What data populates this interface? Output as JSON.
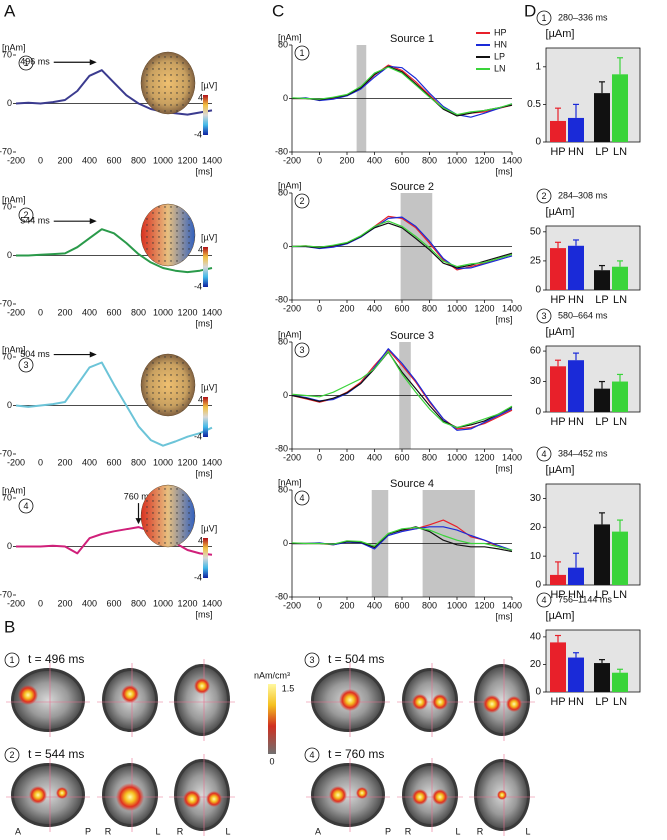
{
  "panel_labels": [
    "A",
    "B",
    "C",
    "D"
  ],
  "chart_data": [
    {
      "type": "line",
      "badge": "1",
      "y_label": "[nAm]",
      "x_label": "[ms]",
      "annotation": "496 ms",
      "colorbar_label": "[µV]",
      "colorbar_ticks": [
        4,
        -4
      ],
      "x": [
        -200,
        -100,
        0,
        100,
        200,
        300,
        400,
        500,
        600,
        700,
        800,
        900,
        1000,
        1100,
        1200,
        1300,
        1400
      ],
      "series": [
        {
          "color": "#3b3b8f",
          "values": [
            0,
            1,
            0,
            2,
            5,
            18,
            40,
            48,
            30,
            12,
            0,
            -8,
            -12,
            -14,
            -16,
            -13,
            -10
          ]
        }
      ],
      "xlim": [
        -200,
        1400
      ],
      "xticks": [
        -200,
        0,
        200,
        400,
        600,
        800,
        1000,
        1200,
        1400
      ],
      "ylim": [
        -70,
        70
      ],
      "yticks": [
        -70,
        0,
        70
      ]
    },
    {
      "type": "line",
      "badge": "2",
      "y_label": "[nAm]",
      "x_label": "[ms]",
      "annotation": "544 ms",
      "colorbar_label": "[µV]",
      "colorbar_ticks": [
        4,
        -4
      ],
      "x": [
        -200,
        -100,
        0,
        100,
        200,
        300,
        400,
        500,
        600,
        700,
        800,
        900,
        1000,
        1100,
        1200,
        1300,
        1400
      ],
      "series": [
        {
          "color": "#2a9a4a",
          "values": [
            0,
            0,
            1,
            2,
            3,
            12,
            25,
            38,
            32,
            18,
            2,
            -10,
            -18,
            -22,
            -24,
            -22,
            -18
          ]
        }
      ],
      "xlim": [
        -200,
        1400
      ],
      "xticks": [
        -200,
        0,
        200,
        400,
        600,
        800,
        1000,
        1200,
        1400
      ],
      "ylim": [
        -70,
        70
      ],
      "yticks": [
        -70,
        0,
        70
      ]
    },
    {
      "type": "line",
      "badge": "3",
      "y_label": "[nAm]",
      "x_label": "[ms]",
      "annotation": "504 ms",
      "colorbar_label": "[µV]",
      "colorbar_ticks": [
        4,
        -4
      ],
      "x": [
        -200,
        -100,
        0,
        100,
        200,
        300,
        400,
        500,
        600,
        700,
        800,
        900,
        1000,
        1100,
        1200,
        1300,
        1400
      ],
      "series": [
        {
          "color": "#6cc4d8",
          "values": [
            0,
            -2,
            0,
            2,
            5,
            30,
            55,
            62,
            30,
            0,
            -30,
            -50,
            -58,
            -52,
            -45,
            -40,
            -32
          ]
        }
      ],
      "xlim": [
        -200,
        1400
      ],
      "xticks": [
        -200,
        0,
        200,
        400,
        600,
        800,
        1000,
        1200,
        1400
      ],
      "ylim": [
        -70,
        70
      ],
      "yticks": [
        -70,
        0,
        70
      ]
    },
    {
      "type": "line",
      "badge": "4",
      "y_label": "[nAm]",
      "x_label": "[ms]",
      "annotation": "760 ms",
      "colorbar_label": "[µV]",
      "colorbar_ticks": [
        4,
        -4
      ],
      "x": [
        -200,
        -100,
        0,
        100,
        200,
        300,
        400,
        500,
        600,
        700,
        800,
        900,
        1000,
        1100,
        1200,
        1300,
        1400
      ],
      "series": [
        {
          "color": "#d0207a",
          "values": [
            0,
            0,
            0,
            1,
            0,
            -10,
            12,
            18,
            22,
            25,
            28,
            22,
            15,
            5,
            -5,
            -10,
            -12
          ]
        }
      ],
      "xlim": [
        -200,
        1400
      ],
      "xticks": [
        -200,
        0,
        200,
        400,
        600,
        800,
        1000,
        1200,
        1400
      ],
      "ylim": [
        -70,
        70
      ],
      "yticks": [
        -70,
        0,
        70
      ]
    },
    {
      "type": "line",
      "title": "Source 1",
      "badge": "1",
      "y_label": "[nAm]",
      "x_label": "[ms]",
      "highlights": [
        [
          270,
          340
        ]
      ],
      "legend": true,
      "x": [
        -200,
        -100,
        0,
        100,
        200,
        300,
        400,
        500,
        600,
        700,
        800,
        900,
        1000,
        1100,
        1200,
        1300,
        1400
      ],
      "series": [
        {
          "name": "HP",
          "color": "#e8202a",
          "values": [
            0,
            0,
            -2,
            0,
            5,
            15,
            35,
            50,
            42,
            25,
            5,
            -15,
            -25,
            -22,
            -20,
            -15,
            -10
          ]
        },
        {
          "name": "HN",
          "color": "#1a2ad8",
          "values": [
            0,
            1,
            -3,
            -1,
            4,
            14,
            32,
            48,
            46,
            30,
            8,
            -12,
            -24,
            -28,
            -22,
            -15,
            -8
          ]
        },
        {
          "name": "LP",
          "color": "#111111",
          "values": [
            0,
            0,
            -2,
            1,
            5,
            16,
            36,
            48,
            40,
            22,
            3,
            -16,
            -26,
            -22,
            -18,
            -14,
            -10
          ]
        },
        {
          "name": "LN",
          "color": "#3ad43a",
          "values": [
            1,
            0,
            -1,
            2,
            6,
            18,
            38,
            47,
            38,
            20,
            2,
            -14,
            -24,
            -20,
            -18,
            -14,
            -8
          ]
        }
      ],
      "xlim": [
        -200,
        1400
      ],
      "xticks": [
        -200,
        0,
        200,
        400,
        600,
        800,
        1000,
        1200,
        1400
      ],
      "ylim": [
        -80,
        80
      ],
      "yticks": [
        -80,
        0,
        80
      ]
    },
    {
      "type": "line",
      "title": "Source 2",
      "badge": "2",
      "y_label": "[nAm]",
      "x_label": "[ms]",
      "highlights": [
        [
          590,
          820
        ]
      ],
      "x": [
        -200,
        -100,
        0,
        100,
        200,
        300,
        400,
        500,
        600,
        700,
        800,
        900,
        1000,
        1100,
        1200,
        1300,
        1400
      ],
      "series": [
        {
          "color": "#e8202a",
          "values": [
            0,
            1,
            -2,
            0,
            5,
            15,
            30,
            45,
            42,
            28,
            5,
            -20,
            -35,
            -30,
            -25,
            -18,
            -12
          ]
        },
        {
          "color": "#1a2ad8",
          "values": [
            0,
            0,
            -3,
            -1,
            4,
            14,
            28,
            42,
            44,
            30,
            8,
            -18,
            -33,
            -32,
            -26,
            -20,
            -14
          ]
        },
        {
          "color": "#111111",
          "values": [
            0,
            0,
            -2,
            1,
            5,
            15,
            28,
            35,
            28,
            12,
            -5,
            -25,
            -32,
            -28,
            -22,
            -16,
            -10
          ]
        },
        {
          "color": "#3ad43a",
          "values": [
            0,
            1,
            -1,
            2,
            6,
            16,
            30,
            38,
            30,
            15,
            -2,
            -22,
            -30,
            -26,
            -24,
            -18,
            -12
          ]
        }
      ],
      "xlim": [
        -200,
        1400
      ],
      "xticks": [
        -200,
        0,
        200,
        400,
        600,
        800,
        1000,
        1200,
        1400
      ],
      "ylim": [
        -80,
        80
      ],
      "yticks": [
        -80,
        0,
        80
      ]
    },
    {
      "type": "line",
      "title": "Source 3",
      "badge": "3",
      "y_label": "[nAm]",
      "x_label": "[ms]",
      "highlights": [
        [
          580,
          664
        ]
      ],
      "x": [
        -200,
        -100,
        0,
        100,
        200,
        300,
        400,
        500,
        600,
        700,
        800,
        900,
        1000,
        1100,
        1200,
        1300,
        1400
      ],
      "series": [
        {
          "color": "#e8202a",
          "values": [
            0,
            -5,
            -10,
            -5,
            5,
            20,
            45,
            68,
            45,
            20,
            -10,
            -35,
            -50,
            -48,
            -42,
            -32,
            -22
          ]
        },
        {
          "color": "#1a2ad8",
          "values": [
            0,
            -3,
            -8,
            -6,
            3,
            18,
            42,
            70,
            48,
            22,
            -8,
            -35,
            -52,
            -50,
            -40,
            -30,
            -20
          ]
        },
        {
          "color": "#111111",
          "values": [
            0,
            -4,
            -9,
            -4,
            4,
            18,
            40,
            65,
            35,
            10,
            -15,
            -38,
            -48,
            -44,
            -38,
            -28,
            -18
          ]
        },
        {
          "color": "#3ad43a",
          "values": [
            2,
            0,
            -2,
            5,
            15,
            25,
            40,
            66,
            32,
            5,
            -20,
            -40,
            -48,
            -42,
            -35,
            -28,
            -16
          ]
        }
      ],
      "xlim": [
        -200,
        1400
      ],
      "xticks": [
        -200,
        0,
        200,
        400,
        600,
        800,
        1000,
        1200,
        1400
      ],
      "ylim": [
        -80,
        80
      ],
      "yticks": [
        -80,
        0,
        80
      ]
    },
    {
      "type": "line",
      "title": "Source 4",
      "badge": "4",
      "y_label": "[nAm]",
      "x_label": "[ms]",
      "highlights": [
        [
          380,
          500
        ],
        [
          750,
          1130
        ]
      ],
      "x": [
        -200,
        -100,
        0,
        100,
        200,
        300,
        400,
        500,
        600,
        700,
        800,
        900,
        1000,
        1100,
        1200,
        1300,
        1400
      ],
      "series": [
        {
          "color": "#e8202a",
          "values": [
            0,
            0,
            0,
            -2,
            3,
            2,
            -5,
            15,
            20,
            22,
            28,
            35,
            25,
            10,
            5,
            -5,
            -10
          ]
        },
        {
          "color": "#1a2ad8",
          "values": [
            0,
            0,
            1,
            -2,
            2,
            1,
            -8,
            12,
            18,
            22,
            25,
            25,
            20,
            12,
            5,
            -3,
            -10
          ]
        },
        {
          "color": "#111111",
          "values": [
            0,
            0,
            0,
            -1,
            3,
            2,
            -6,
            14,
            20,
            25,
            18,
            5,
            -2,
            -5,
            -5,
            -8,
            -12
          ]
        },
        {
          "color": "#3ad43a",
          "values": [
            1,
            0,
            0,
            -1,
            4,
            3,
            -4,
            15,
            22,
            24,
            20,
            12,
            5,
            0,
            0,
            -5,
            -10
          ]
        }
      ],
      "xlim": [
        -200,
        1400
      ],
      "xticks": [
        -200,
        0,
        200,
        400,
        600,
        800,
        1000,
        1200,
        1400
      ],
      "ylim": [
        -80,
        80
      ],
      "yticks": [
        -80,
        0,
        80
      ]
    },
    {
      "type": "bar",
      "badge": "1",
      "title": "280–336 ms",
      "y_label": "[µAm]",
      "categories": [
        "HP",
        "HN",
        "LP",
        "LN"
      ],
      "colors": [
        "#e8202a",
        "#1a2ad8",
        "#111111",
        "#3ad43a"
      ],
      "values": [
        0.28,
        0.32,
        0.65,
        0.9
      ],
      "errors": [
        0.17,
        0.18,
        0.15,
        0.22
      ],
      "ylim": [
        0,
        1.25
      ],
      "yticks": [
        0,
        0.5,
        1
      ]
    },
    {
      "type": "bar",
      "badge": "2",
      "title": "284–308 ms",
      "y_label": "[µAm]",
      "categories": [
        "HP",
        "HN",
        "LP",
        "LN"
      ],
      "colors": [
        "#e8202a",
        "#1a2ad8",
        "#111111",
        "#3ad43a"
      ],
      "values": [
        36,
        38,
        17,
        20
      ],
      "errors": [
        5,
        5,
        4,
        5
      ],
      "ylim": [
        0,
        55
      ],
      "yticks": [
        0,
        25,
        50
      ]
    },
    {
      "type": "bar",
      "badge": "3",
      "title": "580–664 ms",
      "y_label": "[µAm]",
      "categories": [
        "HP",
        "HN",
        "LP",
        "LN"
      ],
      "colors": [
        "#e8202a",
        "#1a2ad8",
        "#111111",
        "#3ad43a"
      ],
      "values": [
        45,
        51,
        23,
        30
      ],
      "errors": [
        6,
        7,
        7,
        7
      ],
      "ylim": [
        0,
        65
      ],
      "yticks": [
        0,
        30,
        60
      ]
    },
    {
      "type": "bar",
      "badge": "4",
      "title": "384–452 ms",
      "y_label": "[µAm]",
      "categories": [
        "HP",
        "HN",
        "LP",
        "LN"
      ],
      "colors": [
        "#e8202a",
        "#1a2ad8",
        "#111111",
        "#3ad43a"
      ],
      "values": [
        3.5,
        6,
        21,
        18.5
      ],
      "errors": [
        4.5,
        5,
        4,
        4
      ],
      "ylim": [
        0,
        35
      ],
      "yticks": [
        0,
        10,
        20,
        30
      ]
    },
    {
      "type": "bar",
      "badge": "4",
      "title": "756–1144 ms",
      "y_label": "[µAm]",
      "categories": [
        "HP",
        "HN",
        "LP",
        "LN"
      ],
      "colors": [
        "#e8202a",
        "#1a2ad8",
        "#111111",
        "#3ad43a"
      ],
      "values": [
        36,
        25,
        21,
        14
      ],
      "errors": [
        5,
        3.5,
        2.5,
        2.5
      ],
      "ylim": [
        0,
        45
      ],
      "yticks": [
        0,
        20,
        40
      ]
    }
  ],
  "brain_panel": {
    "views": [
      {
        "badge": "1",
        "time": "t = 496 ms"
      },
      {
        "badge": "2",
        "time": "t = 544 ms"
      },
      {
        "badge": "3",
        "time": "t = 504 ms"
      },
      {
        "badge": "4",
        "time": "t = 760 ms"
      }
    ],
    "colorbar": {
      "label": "nAm/cm³",
      "ticks": [
        1.5,
        0
      ]
    },
    "orientation": [
      [
        "A",
        "P",
        "R",
        "L",
        "R",
        "L"
      ],
      [
        "A",
        "P",
        "R",
        "L",
        "R",
        "L"
      ]
    ]
  }
}
